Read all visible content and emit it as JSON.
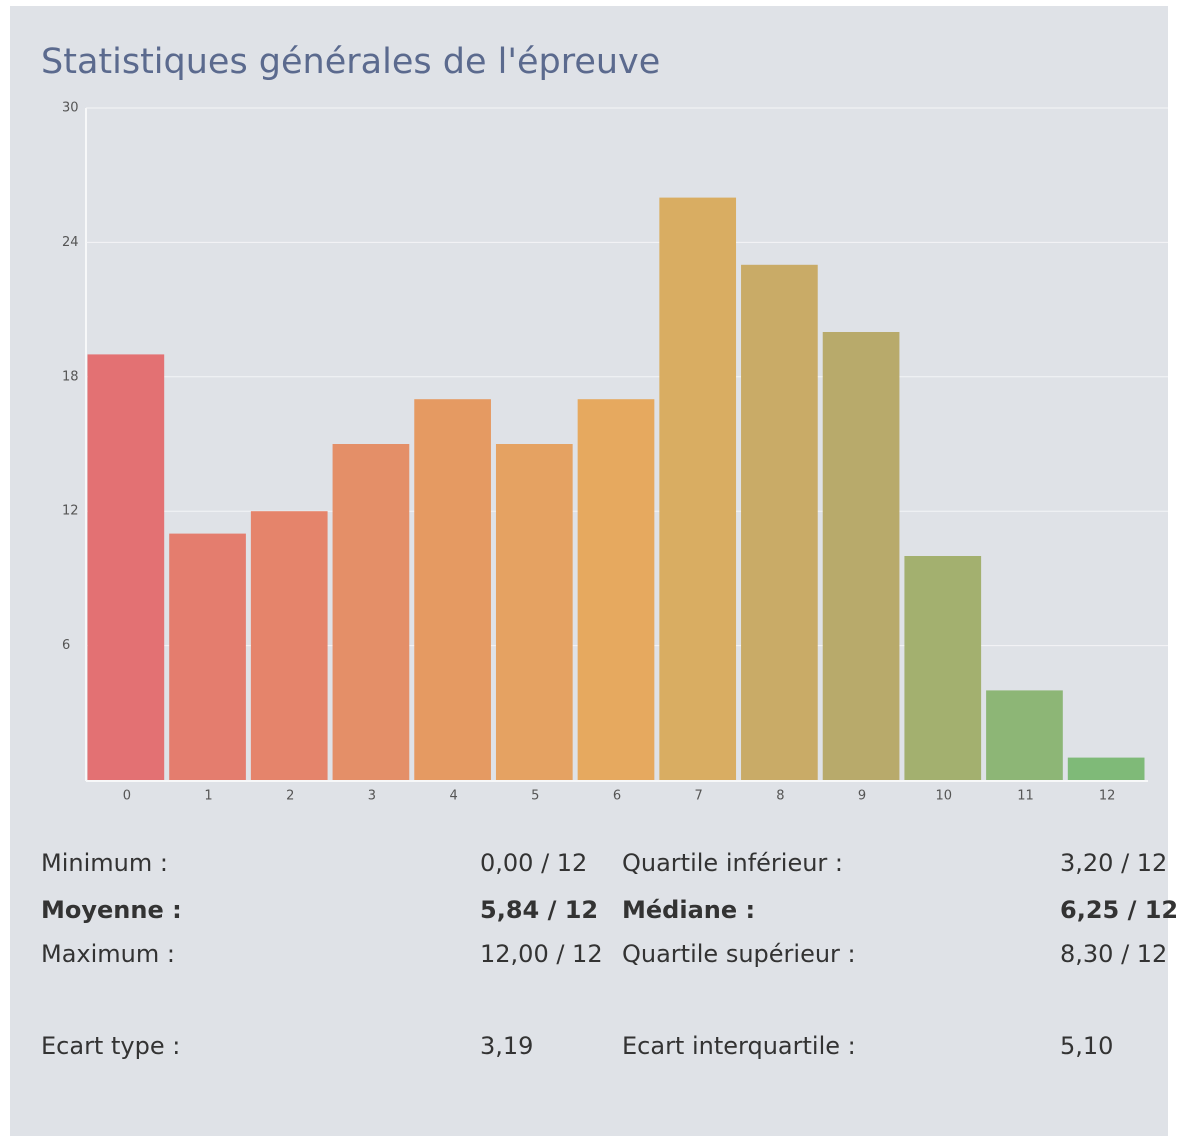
{
  "title": "Statistiques générales de l'épreuve",
  "chart_data": {
    "type": "bar",
    "categories": [
      "0",
      "1",
      "2",
      "3",
      "4",
      "5",
      "6",
      "7",
      "8",
      "9",
      "10",
      "11",
      "12"
    ],
    "values": [
      19,
      11,
      12,
      15,
      17,
      15,
      17,
      26,
      23,
      20,
      10,
      4,
      1
    ],
    "colors": [
      "#e37173",
      "#e47d6e",
      "#e5846b",
      "#e48f68",
      "#e59a62",
      "#e5a262",
      "#e6a95f",
      "#d9ad62",
      "#c9ab67",
      "#b8aa6b",
      "#a3b06f",
      "#8db676",
      "#7fba78"
    ],
    "ylim": [
      0,
      30
    ],
    "yticks": [
      6,
      12,
      18,
      24,
      30
    ],
    "grid": true
  },
  "stats": {
    "rows": [
      [
        "Minimum :",
        "0,00 / 12",
        "Quartile inférieur :",
        "3,20 / 12"
      ],
      [
        "Moyenne :",
        "5,84 / 12",
        "Médiane :",
        "6,25 / 12"
      ],
      [
        "Maximum :",
        "12,00 / 12",
        "Quartile supérieur :",
        "8,30 / 12"
      ],
      [
        "Ecart type :",
        "3,19",
        "Ecart interquartile :",
        "5,10"
      ]
    ]
  }
}
